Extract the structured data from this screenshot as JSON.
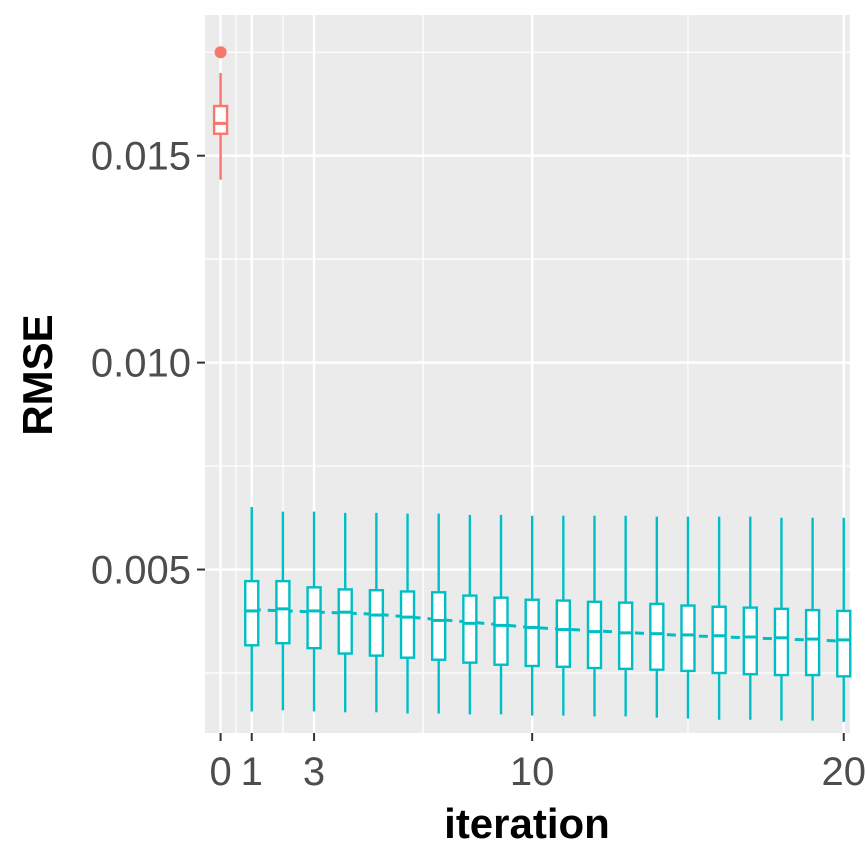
{
  "chart_data": {
    "type": "boxplot",
    "title": "",
    "xlabel": "iteration",
    "ylabel": "RMSE",
    "xlim": [
      -0.5,
      20.2
    ],
    "ylim": [
      0.00105,
      0.0184
    ],
    "x_ticks": [
      0,
      1,
      3,
      10,
      20
    ],
    "x_tick_labels": [
      "0",
      "1",
      "3",
      "10",
      "20"
    ],
    "y_ticks": [
      0.005,
      0.01,
      0.015
    ],
    "y_tick_labels": [
      "0.005",
      "0.010",
      "0.015"
    ],
    "y_minor_gridlines": [
      0.0025,
      0.0075,
      0.0125,
      0.0175
    ],
    "x_minor_gridlines": [
      0.5,
      2,
      6.5,
      15
    ],
    "grid": true,
    "legend": "none",
    "colors": {
      "initial": "#F8766D",
      "iterations": "#00BFC4",
      "panel": "#EBEBEB",
      "grid": "#FFFFFF"
    },
    "series": [
      {
        "group": "initial",
        "boxes": [
          {
            "x": 0,
            "whislo": 0.01442,
            "q1": 0.01553,
            "median": 0.01578,
            "q3": 0.0162,
            "whishi": 0.017,
            "outliers": [
              0.0175
            ]
          }
        ]
      },
      {
        "group": "iterations",
        "boxes": [
          {
            "x": 1,
            "whislo": 0.00157,
            "q1": 0.00317,
            "median": 0.004,
            "q3": 0.00472,
            "whishi": 0.00651
          },
          {
            "x": 2,
            "whislo": 0.0016,
            "q1": 0.00322,
            "median": 0.00405,
            "q3": 0.00472,
            "whishi": 0.0064
          },
          {
            "x": 3,
            "whislo": 0.00157,
            "q1": 0.0031,
            "median": 0.004,
            "q3": 0.00457,
            "whishi": 0.0064
          },
          {
            "x": 4,
            "whislo": 0.00155,
            "q1": 0.00297,
            "median": 0.00397,
            "q3": 0.00452,
            "whishi": 0.00637
          },
          {
            "x": 5,
            "whislo": 0.00155,
            "q1": 0.00292,
            "median": 0.0039,
            "q3": 0.0045,
            "whishi": 0.00637
          },
          {
            "x": 6,
            "whislo": 0.00152,
            "q1": 0.00287,
            "median": 0.00385,
            "q3": 0.00447,
            "whishi": 0.00635
          },
          {
            "x": 7,
            "whislo": 0.00152,
            "q1": 0.00282,
            "median": 0.00377,
            "q3": 0.00445,
            "whishi": 0.00635
          },
          {
            "x": 8,
            "whislo": 0.0015,
            "q1": 0.00275,
            "median": 0.0037,
            "q3": 0.00437,
            "whishi": 0.00632
          },
          {
            "x": 9,
            "whislo": 0.0015,
            "q1": 0.0027,
            "median": 0.00365,
            "q3": 0.00432,
            "whishi": 0.00632
          },
          {
            "x": 10,
            "whislo": 0.00147,
            "q1": 0.00267,
            "median": 0.0036,
            "q3": 0.00427,
            "whishi": 0.0063
          },
          {
            "x": 11,
            "whislo": 0.00147,
            "q1": 0.00265,
            "median": 0.00355,
            "q3": 0.00425,
            "whishi": 0.0063
          },
          {
            "x": 12,
            "whislo": 0.00145,
            "q1": 0.00262,
            "median": 0.0035,
            "q3": 0.00422,
            "whishi": 0.0063
          },
          {
            "x": 13,
            "whislo": 0.00145,
            "q1": 0.0026,
            "median": 0.00347,
            "q3": 0.0042,
            "whishi": 0.0063
          },
          {
            "x": 14,
            "whislo": 0.00142,
            "q1": 0.00258,
            "median": 0.00345,
            "q3": 0.00417,
            "whishi": 0.00628
          },
          {
            "x": 15,
            "whislo": 0.0014,
            "q1": 0.00255,
            "median": 0.00342,
            "q3": 0.00413,
            "whishi": 0.00628
          },
          {
            "x": 16,
            "whislo": 0.00137,
            "q1": 0.0025,
            "median": 0.0034,
            "q3": 0.0041,
            "whishi": 0.00628
          },
          {
            "x": 17,
            "whislo": 0.00137,
            "q1": 0.00247,
            "median": 0.00337,
            "q3": 0.00408,
            "whishi": 0.00628
          },
          {
            "x": 18,
            "whislo": 0.00135,
            "q1": 0.00245,
            "median": 0.00335,
            "q3": 0.00405,
            "whishi": 0.00625
          },
          {
            "x": 19,
            "whislo": 0.00135,
            "q1": 0.00245,
            "median": 0.00332,
            "q3": 0.00402,
            "whishi": 0.00625
          },
          {
            "x": 20,
            "whislo": 0.00132,
            "q1": 0.00242,
            "median": 0.0033,
            "q3": 0.004,
            "whishi": 0.00625
          }
        ]
      }
    ],
    "trend_line": {
      "style": "dashed",
      "color": "#00BFC4",
      "x": [
        1,
        5,
        10,
        15,
        20
      ],
      "y": [
        0.00403,
        0.00392,
        0.0036,
        0.0034,
        0.00327
      ]
    }
  }
}
